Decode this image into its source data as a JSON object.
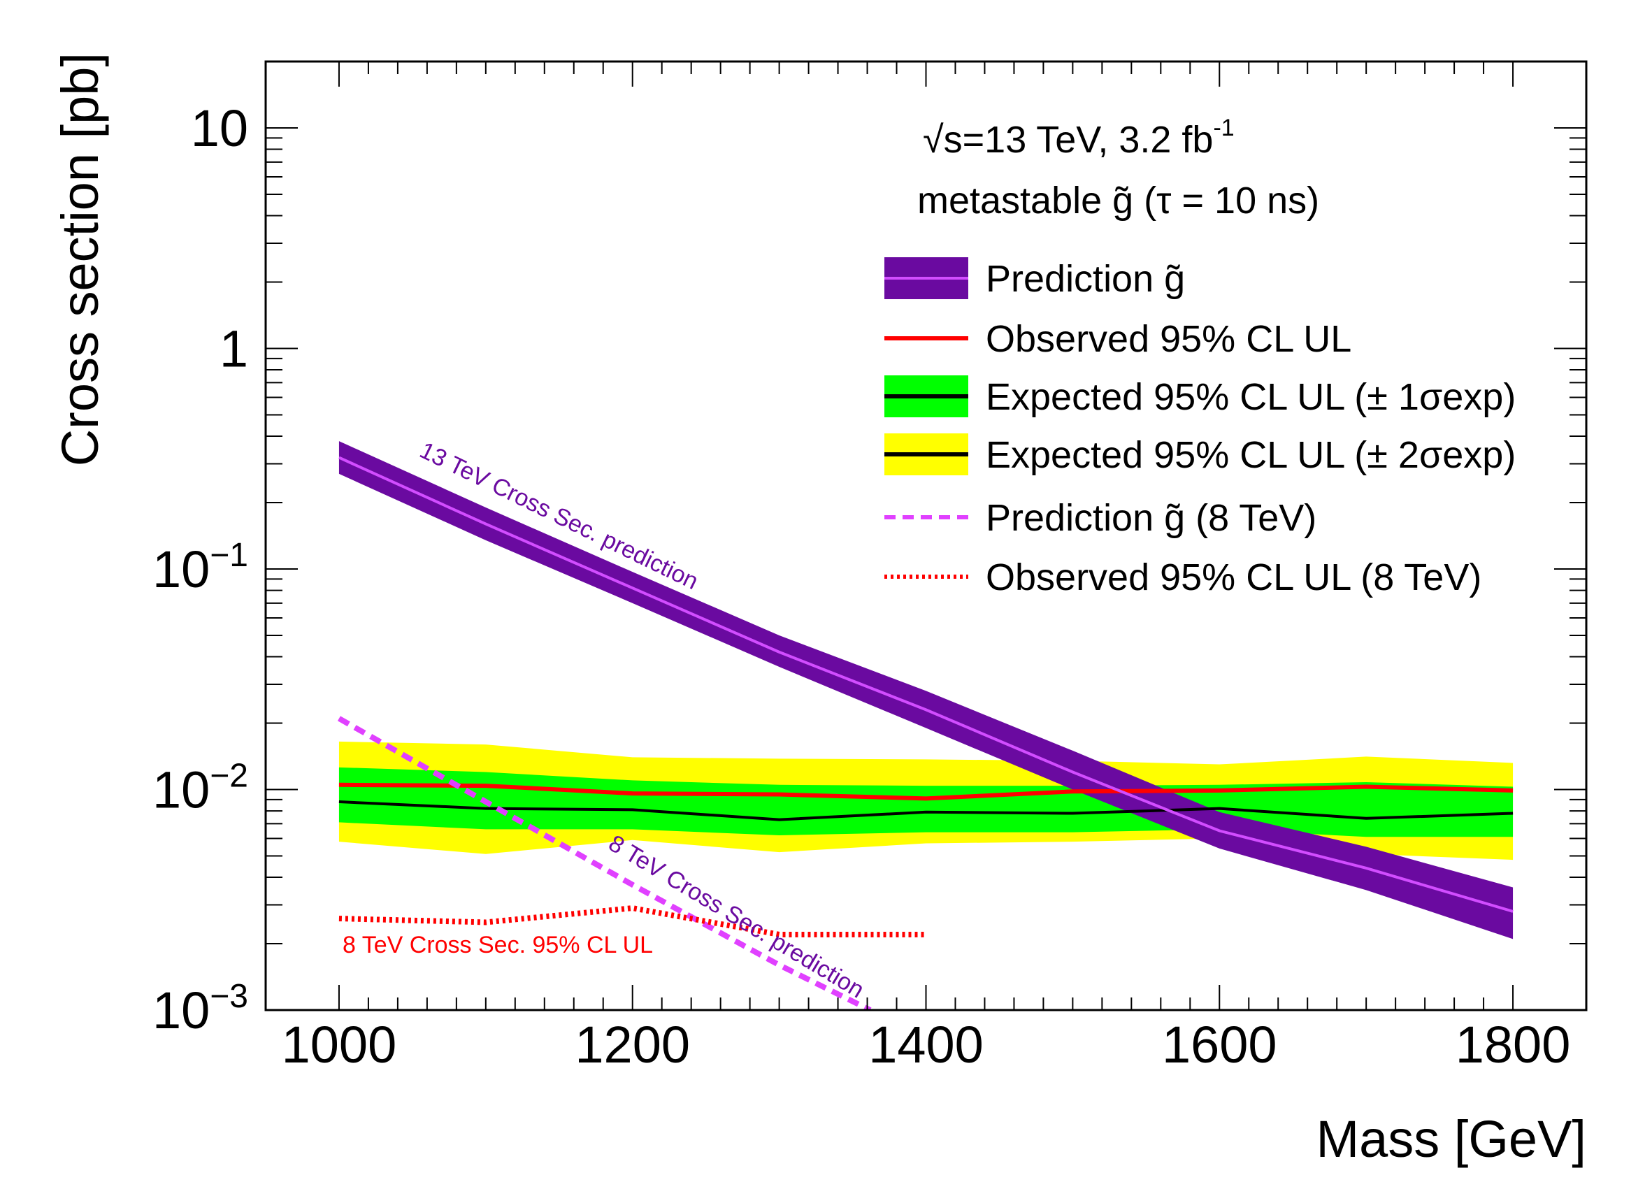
{
  "chart_data": {
    "type": "line",
    "title": "",
    "xlabel": "Mass [GeV]",
    "ylabel": "Cross section [pb]",
    "xlim": [
      950,
      1850
    ],
    "ylim": [
      0.001,
      20
    ],
    "yscale": "log",
    "x_ticks": [
      "1000",
      "1200",
      "1400",
      "1600",
      "1800"
    ],
    "y_ticks": [
      {
        "value": 10,
        "base": "10",
        "exp": ""
      },
      {
        "value": 1,
        "base": "1",
        "exp": ""
      },
      {
        "value": 0.1,
        "base": "10",
        "exp": "−1"
      },
      {
        "value": 0.01,
        "base": "10",
        "exp": "−2"
      },
      {
        "value": 0.001,
        "base": "10",
        "exp": "−3"
      }
    ],
    "grid": false,
    "legend_position": "top-right",
    "header": {
      "energy_prefix": "√s=13 TeV, 3.2 fb",
      "energy_exp": "-1",
      "particle_line": "metastable g̃ (τ = 10 ns)"
    },
    "series": [
      {
        "name": "Prediction g̃",
        "style": "band+line",
        "color": "#d24dff",
        "band_color": "#6a0aa0",
        "x": [
          1000,
          1100,
          1200,
          1300,
          1400,
          1500,
          1600,
          1700,
          1800
        ],
        "y": [
          0.32,
          0.16,
          0.082,
          0.042,
          0.023,
          0.012,
          0.0065,
          0.0044,
          0.0028
        ],
        "band_low": [
          0.27,
          0.135,
          0.07,
          0.036,
          0.019,
          0.01,
          0.0054,
          0.0035,
          0.0021
        ],
        "band_high": [
          0.38,
          0.19,
          0.097,
          0.05,
          0.028,
          0.015,
          0.0079,
          0.0055,
          0.0036
        ]
      },
      {
        "name": "Observed 95% CL UL",
        "style": "line",
        "color": "#ff0000",
        "x": [
          1000,
          1100,
          1200,
          1300,
          1400,
          1500,
          1600,
          1700,
          1800
        ],
        "y": [
          0.0105,
          0.0104,
          0.0096,
          0.0095,
          0.0091,
          0.0098,
          0.0099,
          0.0103,
          0.0099
        ]
      },
      {
        "name": "Expected 95% CL UL (± 1σexp)",
        "style": "band+line",
        "color": "#000000",
        "band_color": "#00ff00",
        "x": [
          1000,
          1100,
          1200,
          1300,
          1400,
          1500,
          1600,
          1700,
          1800
        ],
        "y": [
          0.0088,
          0.0082,
          0.0081,
          0.0073,
          0.0079,
          0.0078,
          0.0082,
          0.0074,
          0.0078
        ],
        "band_low": [
          0.0071,
          0.0066,
          0.0066,
          0.0062,
          0.0064,
          0.0064,
          0.0066,
          0.0061,
          0.0061
        ],
        "band_high": [
          0.0126,
          0.012,
          0.011,
          0.0105,
          0.0104,
          0.0104,
          0.0105,
          0.0108,
          0.0103
        ]
      },
      {
        "name": "Expected 95% CL UL (± 2σexp)",
        "style": "band+line",
        "color": "#000000",
        "band_color": "#ffff00",
        "x": [
          1000,
          1100,
          1200,
          1300,
          1400,
          1500,
          1600,
          1700,
          1800
        ],
        "y": [
          0.0088,
          0.0082,
          0.0081,
          0.0073,
          0.0079,
          0.0078,
          0.0082,
          0.0074,
          0.0078
        ],
        "band_low": [
          0.0058,
          0.0051,
          0.0059,
          0.0052,
          0.0057,
          0.0058,
          0.006,
          0.0051,
          0.0048
        ],
        "band_high": [
          0.0165,
          0.016,
          0.014,
          0.0138,
          0.0137,
          0.0135,
          0.013,
          0.0141,
          0.0132
        ]
      },
      {
        "name": "Prediction g̃ (8 TeV)",
        "style": "dashed",
        "color": "#e040ff",
        "x": [
          1000,
          1100,
          1200,
          1300,
          1362
        ],
        "y": [
          0.021,
          0.0088,
          0.0037,
          0.0016,
          0.001
        ]
      },
      {
        "name": "Observed 95% CL UL (8 TeV)",
        "style": "dotted",
        "color": "#ff0000",
        "x": [
          1000,
          1100,
          1200,
          1300,
          1400
        ],
        "y": [
          0.0026,
          0.0025,
          0.0029,
          0.0022,
          0.0022
        ]
      }
    ],
    "annotations": [
      {
        "text": "13 TeV Cross Sec. prediction",
        "color": "#6a0aa0"
      },
      {
        "text": "8 TeV Cross Sec. prediction",
        "color": "#6a0aa0"
      },
      {
        "text": "8 TeV Cross Sec. 95% CL UL",
        "color": "#ff0000"
      }
    ]
  }
}
